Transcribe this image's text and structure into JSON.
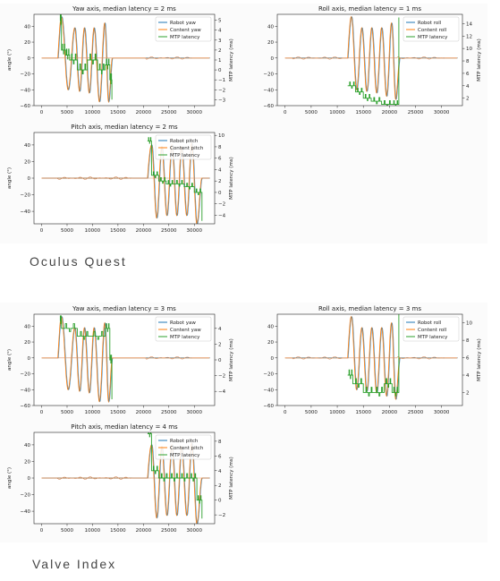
{
  "headings": {
    "quest": "Oculus Quest",
    "index": "Valve Index"
  },
  "colors": {
    "robot": "#1f77b4",
    "content": "#ff7f0e",
    "latency": "#2ca02c"
  },
  "chart_data": [
    {
      "id": "quest-yaw",
      "type": "line",
      "title": "Yaw axis, median latency = 2 ms",
      "ylabel": "angle (°)",
      "y2label": "MTP latency (ms)",
      "xlim": [
        -1500,
        34000
      ],
      "ylim": [
        -60,
        55
      ],
      "y2lim": [
        -3.6,
        5.6
      ],
      "xticks": [
        0,
        5000,
        10000,
        15000,
        20000,
        25000,
        30000
      ],
      "yticks": [
        -60,
        -40,
        -20,
        0,
        20,
        40
      ],
      "y2ticks": [
        -3,
        -2,
        -1,
        0,
        1,
        2,
        3,
        4,
        5
      ],
      "legend": [
        "Robot yaw",
        "Content yaw",
        "MTP latency"
      ],
      "legend_loc": "top-right",
      "oscillation": {
        "start": 3200,
        "end": 13900,
        "peaks": [
          3900,
          6500,
          8400,
          10300,
          12400
        ],
        "peak_values": [
          52,
          38,
          38,
          38,
          44
        ],
        "trough_values": [
          -40,
          -42,
          -44,
          -55,
          -55
        ]
      },
      "noise": [
        [
          20500,
          24000
        ],
        [
          24000,
          29500
        ]
      ],
      "latency": [
        [
          3600,
          5
        ],
        [
          3900,
          2
        ],
        [
          4700,
          1.5
        ],
        [
          5500,
          1
        ],
        [
          7000,
          0
        ],
        [
          9000,
          1
        ],
        [
          11000,
          0
        ],
        [
          12500,
          0.5
        ],
        [
          13400,
          -1
        ],
        [
          13800,
          -3
        ]
      ]
    },
    {
      "id": "quest-roll",
      "type": "line",
      "title": "Roll axis, median latency = 1 ms",
      "ylabel": "",
      "y2label": "MTP latency (ms)",
      "xlim": [
        -1500,
        34000
      ],
      "ylim": [
        -60,
        55
      ],
      "y2lim": [
        0.8,
        15.5
      ],
      "xticks": [
        0,
        5000,
        10000,
        15000,
        20000,
        25000,
        30000
      ],
      "yticks": [
        -60,
        -40,
        -20,
        0,
        20,
        40
      ],
      "y2ticks": [
        2,
        4,
        6,
        8,
        10,
        12,
        14
      ],
      "legend": [
        "Robot roll",
        "Content roll",
        "MTP latency"
      ],
      "legend_loc": "top-right",
      "oscillation": {
        "start": 12000,
        "end": 22000,
        "peaks": [
          12700,
          14700,
          16600,
          18500,
          20400
        ],
        "peak_values": [
          52,
          38,
          38,
          38,
          44
        ],
        "trough_values": [
          -40,
          -42,
          -44,
          -48,
          -52
        ]
      },
      "noise": [
        [
          1500,
          11000
        ],
        [
          21500,
          30500
        ]
      ],
      "latency": [
        [
          12000,
          4
        ],
        [
          13500,
          3
        ],
        [
          15000,
          2
        ],
        [
          16500,
          1.5
        ],
        [
          18500,
          1
        ],
        [
          20500,
          1
        ],
        [
          21800,
          15
        ]
      ]
    },
    {
      "id": "quest-pitch",
      "type": "line",
      "title": "Pitch axis, median latency = 2 ms",
      "ylabel": "angle (°)",
      "y2label": "MTP latency (ms)",
      "xlim": [
        -1500,
        34000
      ],
      "ylim": [
        -55,
        55
      ],
      "y2lim": [
        -5.5,
        10.5
      ],
      "xticks": [
        0,
        5000,
        10000,
        15000,
        20000,
        25000,
        30000
      ],
      "yticks": [
        -40,
        -20,
        0,
        20,
        40
      ],
      "y2ticks": [
        -4,
        -2,
        0,
        2,
        4,
        6,
        8,
        10
      ],
      "legend": [
        "Robot pitch",
        "Content pitch",
        "MTP latency"
      ],
      "legend_loc": "top-right",
      "oscillation": {
        "start": 20800,
        "end": 31500,
        "peaks": [
          21600,
          23600,
          25600,
          27500,
          29500
        ],
        "peak_values": [
          40,
          38,
          40,
          38,
          42
        ],
        "trough_values": [
          -48,
          -45,
          -45,
          -45,
          -55
        ]
      },
      "noise": [
        [
          3000,
          18000
        ]
      ],
      "latency": [
        [
          20800,
          9
        ],
        [
          21600,
          3
        ],
        [
          23000,
          2
        ],
        [
          24500,
          1.5
        ],
        [
          26000,
          1.5
        ],
        [
          28000,
          1
        ],
        [
          30000,
          0
        ],
        [
          31500,
          -5
        ]
      ]
    },
    {
      "id": "index-yaw",
      "type": "line",
      "title": "Yaw axis, median latency = 3 ms",
      "ylabel": "angle (°)",
      "y2label": "MTP latency (ms)",
      "xlim": [
        -1500,
        34000
      ],
      "ylim": [
        -60,
        55
      ],
      "y2lim": [
        -5.8,
        5.8
      ],
      "xticks": [
        0,
        5000,
        10000,
        15000,
        20000,
        25000,
        30000
      ],
      "yticks": [
        -60,
        -40,
        -20,
        0,
        20,
        40
      ],
      "y2ticks": [
        -4,
        -2,
        0,
        2,
        4
      ],
      "legend": [
        "Robot yaw",
        "Content yaw",
        "MTP latency"
      ],
      "legend_loc": "top-right",
      "oscillation": {
        "start": 3200,
        "end": 13900,
        "peaks": [
          3900,
          6500,
          8400,
          10300,
          12400
        ],
        "peak_values": [
          52,
          38,
          38,
          38,
          44
        ],
        "trough_values": [
          -40,
          -42,
          -44,
          -55,
          -55
        ]
      },
      "noise": [
        [
          20500,
          24000
        ],
        [
          24000,
          29500
        ]
      ],
      "latency": [
        [
          3600,
          5
        ],
        [
          3900,
          4
        ],
        [
          7000,
          3
        ],
        [
          9500,
          3
        ],
        [
          12500,
          4
        ],
        [
          13400,
          0
        ],
        [
          13800,
          -5
        ]
      ]
    },
    {
      "id": "index-roll",
      "type": "line",
      "title": "Roll axis, median latency = 3 ms",
      "ylabel": "",
      "y2label": "MTP latency (ms)",
      "xlim": [
        -1500,
        34000
      ],
      "ylim": [
        -60,
        55
      ],
      "y2lim": [
        0.5,
        11
      ],
      "xticks": [
        0,
        5000,
        10000,
        15000,
        20000,
        25000,
        30000
      ],
      "yticks": [
        -60,
        -40,
        -20,
        0,
        20,
        40
      ],
      "y2ticks": [
        2,
        4,
        6,
        8,
        10
      ],
      "legend": [
        "Robot roll",
        "Content roll",
        "MTP latency"
      ],
      "legend_loc": "top-right",
      "oscillation": {
        "start": 12000,
        "end": 22000,
        "peaks": [
          12700,
          14700,
          16600,
          18500,
          20400
        ],
        "peak_values": [
          52,
          38,
          38,
          38,
          44
        ],
        "trough_values": [
          -40,
          -42,
          -44,
          -48,
          -52
        ]
      },
      "noise": [
        [
          1500,
          11000
        ],
        [
          21500,
          30500
        ]
      ],
      "latency": [
        [
          12000,
          4
        ],
        [
          13000,
          3
        ],
        [
          15000,
          2
        ],
        [
          17000,
          2
        ],
        [
          19000,
          3
        ],
        [
          20500,
          2
        ],
        [
          21800,
          11
        ]
      ]
    },
    {
      "id": "index-pitch",
      "type": "line",
      "title": "Pitch axis, median latency = 4 ms",
      "ylabel": "angle (°)",
      "y2label": "MTP latency (ms)",
      "xlim": [
        -1500,
        34000
      ],
      "ylim": [
        -55,
        55
      ],
      "y2lim": [
        -3.2,
        9.2
      ],
      "xticks": [
        0,
        5000,
        10000,
        15000,
        20000,
        25000,
        30000
      ],
      "yticks": [
        -40,
        -20,
        0,
        20,
        40
      ],
      "y2ticks": [
        -2,
        0,
        2,
        4,
        6,
        8
      ],
      "legend": [
        "Robot pitch",
        "Content pitch",
        "MTP latency"
      ],
      "legend_loc": "top-right",
      "oscillation": {
        "start": 20800,
        "end": 31500,
        "peaks": [
          21600,
          23600,
          25600,
          27500,
          29500
        ],
        "peak_values": [
          40,
          38,
          40,
          38,
          42
        ],
        "trough_values": [
          -48,
          -45,
          -45,
          -45,
          -55
        ]
      },
      "noise": [
        [
          3000,
          18000
        ]
      ],
      "latency": [
        [
          20800,
          9
        ],
        [
          21600,
          4
        ],
        [
          23000,
          3
        ],
        [
          25000,
          3
        ],
        [
          27000,
          3
        ],
        [
          29000,
          3
        ],
        [
          30500,
          0
        ],
        [
          31500,
          -2.5
        ]
      ]
    }
  ]
}
